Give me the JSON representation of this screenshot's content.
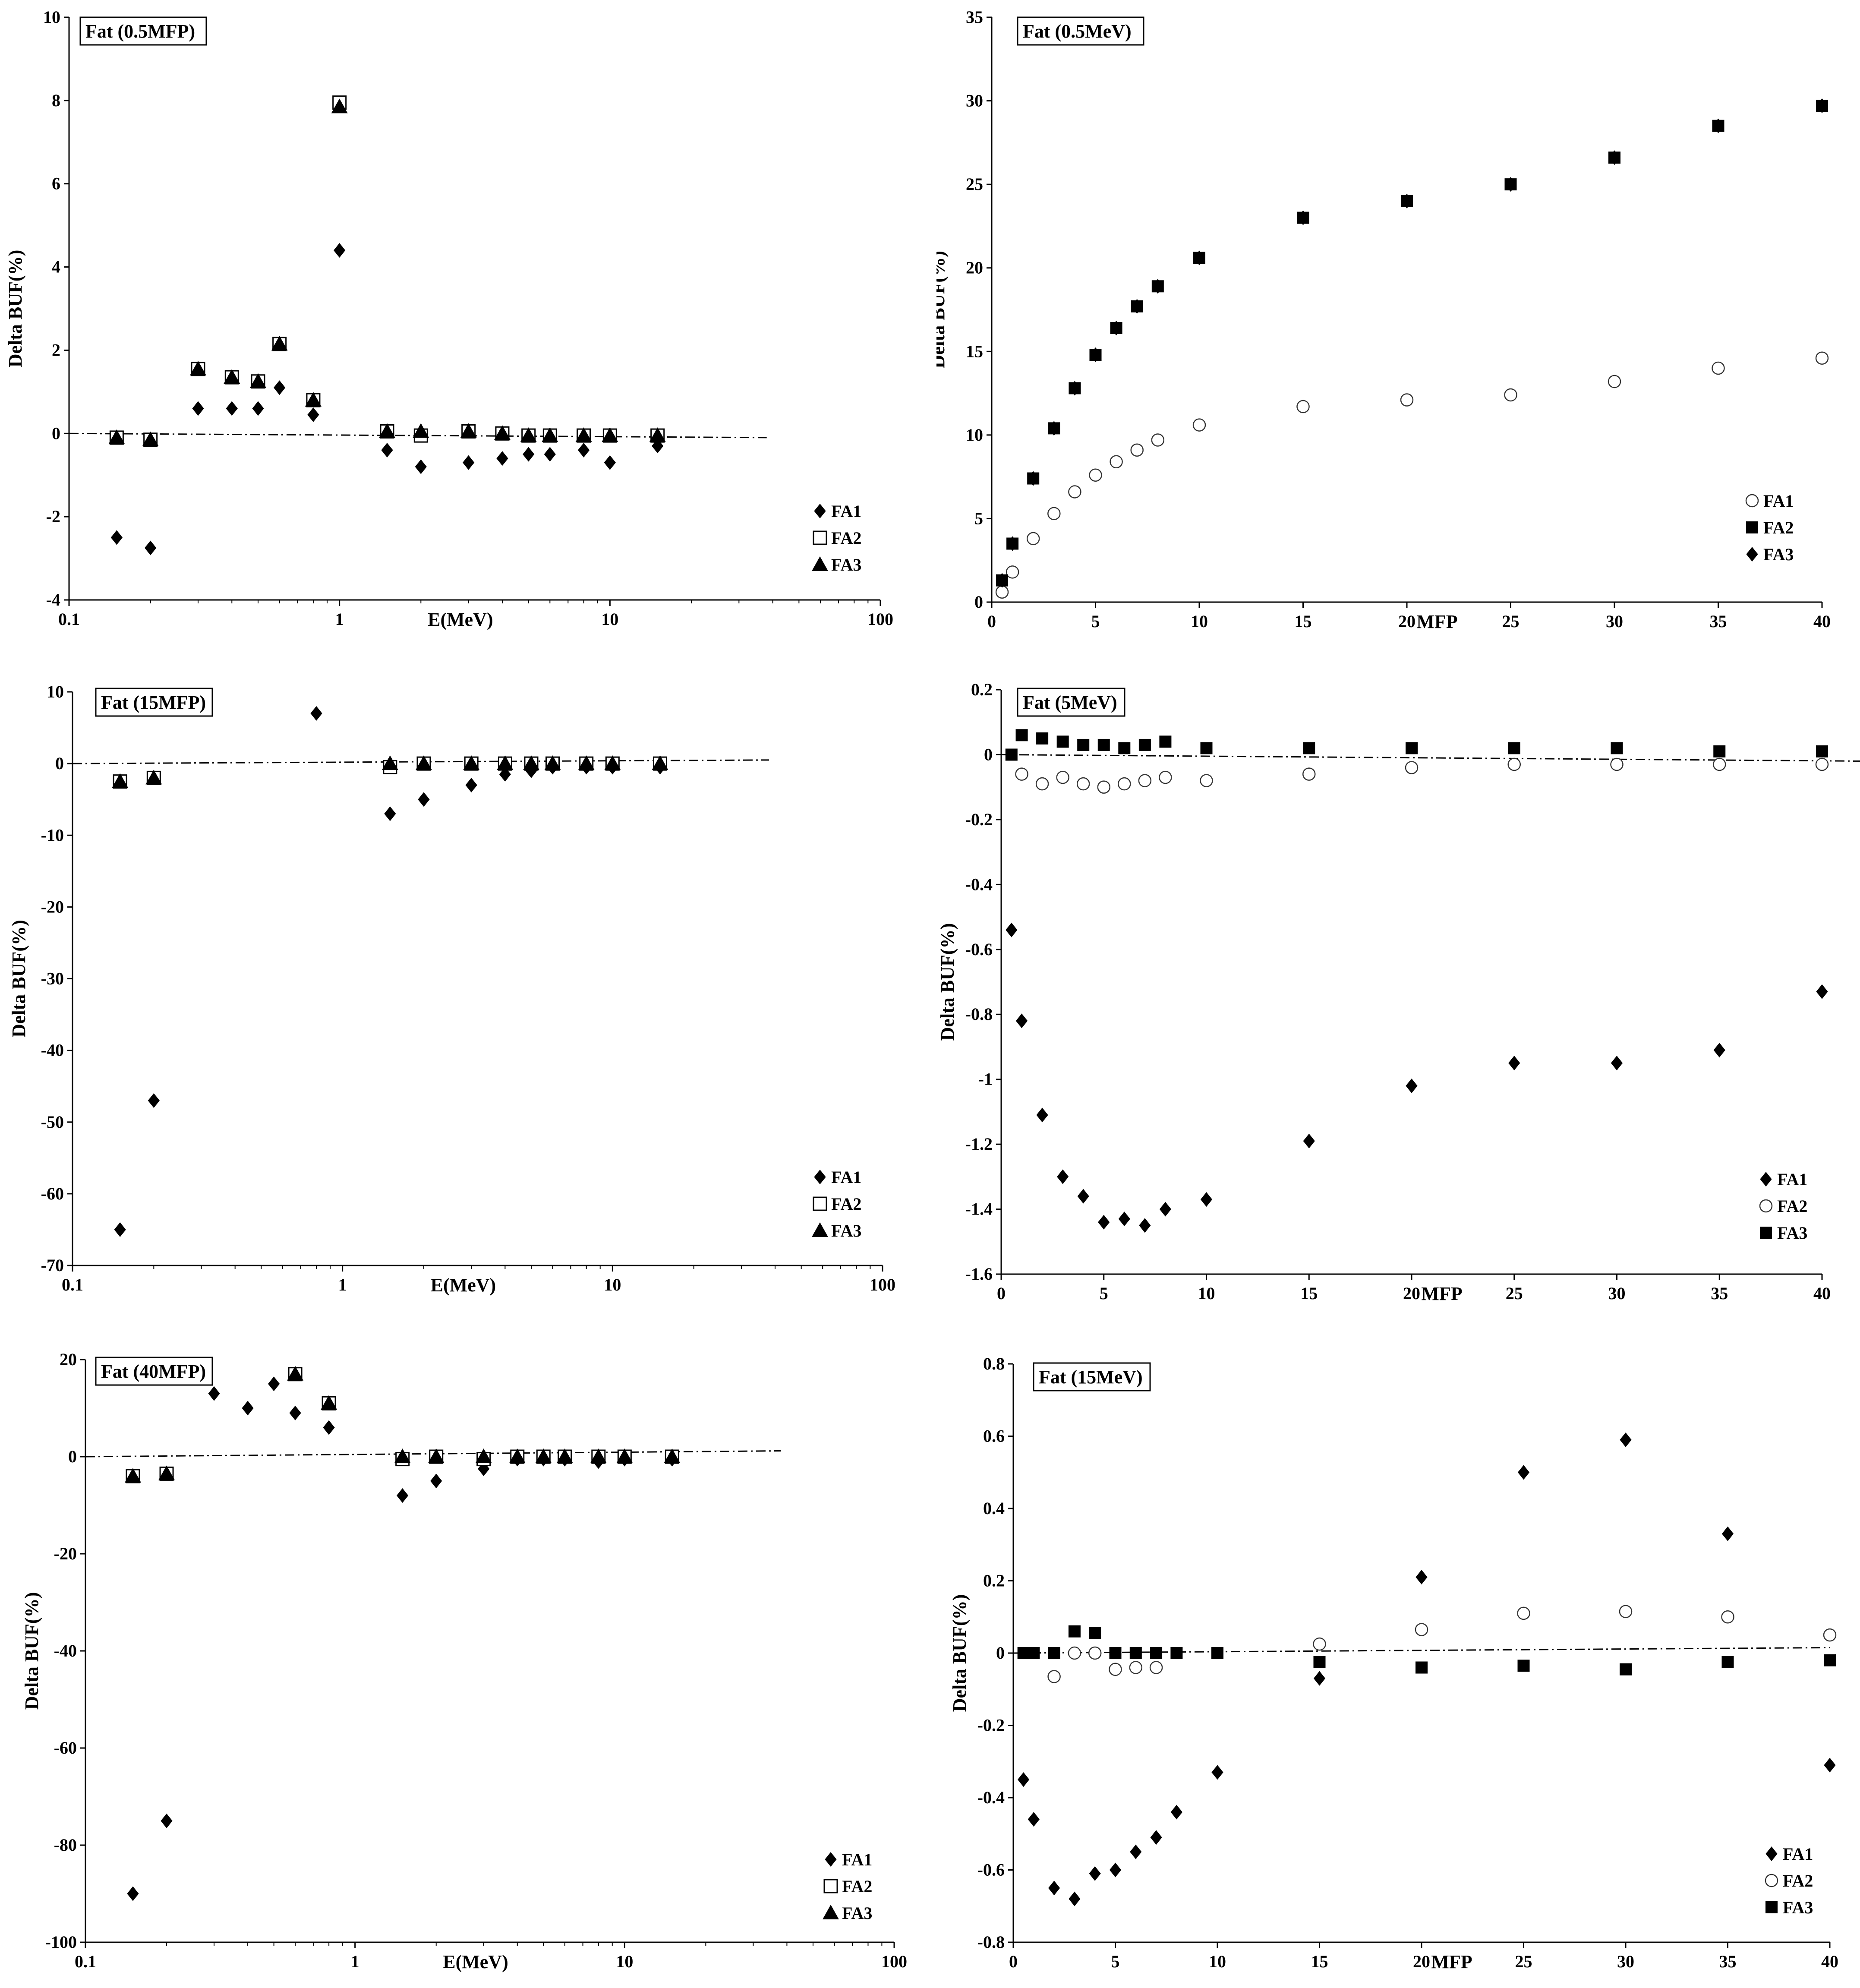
{
  "chart_data": [
    {
      "type": "scatter",
      "title": "Fat (0.5MFP)",
      "xlabel": "E(MeV)",
      "ylabel": "Delta BUF(%)",
      "xscale": "log",
      "xlim": [
        0.1,
        100
      ],
      "ylim": [
        -4,
        10
      ],
      "xticks": [
        0.1,
        1,
        10,
        100
      ],
      "xticklabels": [
        "0.1",
        "1",
        "10",
        "100"
      ],
      "yticks": [
        -4,
        -2,
        0,
        2,
        4,
        6,
        8,
        10
      ],
      "yticklabels": [
        "-4",
        "-2",
        "0",
        "2",
        "4",
        "6",
        "8",
        "10"
      ],
      "reference_line": {
        "x": [
          0.1,
          38
        ],
        "y": [
          0.0,
          -0.1
        ]
      },
      "legend_position": "bottom-right",
      "series": [
        {
          "name": "FA1",
          "marker": "diamond-filled",
          "x": [
            0.15,
            0.2,
            0.3,
            0.4,
            0.5,
            0.6,
            0.8,
            1,
            1.5,
            2,
            3,
            4,
            5,
            6,
            8,
            10,
            15
          ],
          "y": [
            -2.5,
            -2.75,
            0.6,
            0.6,
            0.6,
            1.1,
            0.45,
            4.4,
            -0.4,
            -0.8,
            -0.7,
            -0.6,
            -0.5,
            -0.5,
            -0.4,
            -0.7,
            -0.3
          ]
        },
        {
          "name": "FA2",
          "marker": "square-open",
          "x": [
            0.15,
            0.2,
            0.3,
            0.4,
            0.5,
            0.6,
            0.8,
            1,
            1.5,
            2,
            3,
            4,
            5,
            6,
            8,
            10,
            15
          ],
          "y": [
            -0.1,
            -0.15,
            1.55,
            1.35,
            1.25,
            2.15,
            0.8,
            7.95,
            0.05,
            -0.05,
            0.05,
            0,
            -0.05,
            -0.05,
            -0.05,
            -0.05,
            -0.05
          ]
        },
        {
          "name": "FA3",
          "marker": "triangle-filled",
          "x": [
            0.15,
            0.2,
            0.3,
            0.4,
            0.5,
            0.6,
            0.8,
            1,
            1.5,
            2,
            3,
            4,
            5,
            6,
            8,
            10,
            15
          ],
          "y": [
            -0.1,
            -0.15,
            1.55,
            1.35,
            1.25,
            2.15,
            0.8,
            7.85,
            0.05,
            0.05,
            0.05,
            0,
            -0.05,
            -0.05,
            -0.05,
            -0.05,
            -0.05
          ]
        }
      ]
    },
    {
      "type": "scatter",
      "title": "Fat (0.5MeV)",
      "xlabel": "MFP",
      "ylabel": "Delta BUF(%)",
      "xscale": "linear",
      "xlim": [
        0,
        40
      ],
      "ylim": [
        0,
        35
      ],
      "xticks": [
        0,
        5,
        10,
        15,
        20,
        25,
        30,
        35,
        40
      ],
      "xticklabels": [
        "0",
        "5",
        "10",
        "15",
        "20",
        "25",
        "30",
        "35",
        "40"
      ],
      "yticks": [
        0,
        5,
        10,
        15,
        20,
        25,
        30,
        35
      ],
      "yticklabels": [
        "0",
        "5",
        "10",
        "15",
        "20",
        "25",
        "30",
        "35"
      ],
      "legend_position": "bottom-right",
      "series": [
        {
          "name": "FA1",
          "marker": "circle-open",
          "x": [
            0.5,
            1,
            2,
            3,
            4,
            5,
            6,
            7,
            8,
            10,
            15,
            20,
            25,
            30,
            35,
            40
          ],
          "y": [
            0.6,
            1.8,
            3.8,
            5.3,
            6.6,
            7.6,
            8.4,
            9.1,
            9.7,
            10.6,
            11.7,
            12.1,
            12.4,
            13.2,
            14.0,
            14.6
          ]
        },
        {
          "name": "FA2",
          "marker": "square-filled",
          "x": [
            0.5,
            1,
            2,
            3,
            4,
            5,
            6,
            7,
            8,
            10,
            15,
            20,
            25,
            30,
            35,
            40
          ],
          "y": [
            1.3,
            3.5,
            7.4,
            10.4,
            12.8,
            14.8,
            16.4,
            17.7,
            18.9,
            20.6,
            23.0,
            24.0,
            25.0,
            26.6,
            28.5,
            29.7
          ]
        },
        {
          "name": "FA3",
          "marker": "diamond-filled",
          "x": [
            0.5,
            1,
            2,
            3,
            4,
            5,
            6,
            7,
            8,
            10,
            15,
            20,
            25,
            30,
            35,
            40
          ],
          "y": [
            1.3,
            3.5,
            7.4,
            10.4,
            12.8,
            14.8,
            16.4,
            17.7,
            18.9,
            20.6,
            23.0,
            24.0,
            25.0,
            26.6,
            28.5,
            29.7
          ]
        }
      ]
    },
    {
      "type": "scatter",
      "title": "Fat (15MFP)",
      "xlabel": "E(MeV)",
      "ylabel": "Delta BUF(%)",
      "xscale": "log",
      "xlim": [
        0.1,
        100
      ],
      "ylim": [
        -70,
        10
      ],
      "xticks": [
        0.1,
        1,
        10,
        100
      ],
      "xticklabels": [
        "0.1",
        "1",
        "10",
        "100"
      ],
      "yticks": [
        -70,
        -60,
        -50,
        -40,
        -30,
        -20,
        -10,
        0,
        10
      ],
      "yticklabels": [
        "-70",
        "-60",
        "-50",
        "-40",
        "-30",
        "-20",
        "-10",
        "0",
        "10"
      ],
      "reference_line": {
        "x": [
          0.1,
          38
        ],
        "y": [
          0.0,
          0.5
        ]
      },
      "legend_position": "bottom-right",
      "series": [
        {
          "name": "FA1",
          "marker": "diamond-filled",
          "x": [
            0.15,
            0.2,
            0.8,
            1.5,
            2,
            3,
            4,
            5,
            6,
            8,
            10,
            15
          ],
          "y": [
            -65,
            -47,
            7,
            -7,
            -5,
            -3,
            -1.5,
            -1,
            -0.5,
            -0.5,
            -0.5,
            -0.5
          ]
        },
        {
          "name": "FA2",
          "marker": "square-open",
          "x": [
            0.15,
            0.2,
            1.5,
            2,
            3,
            4,
            5,
            6,
            8,
            10,
            15
          ],
          "y": [
            -2.5,
            -2,
            -0.5,
            0,
            0,
            0,
            0,
            0,
            0,
            0,
            0
          ]
        },
        {
          "name": "FA3",
          "marker": "triangle-filled",
          "x": [
            0.15,
            0.2,
            1.5,
            2,
            3,
            4,
            5,
            6,
            8,
            10,
            15
          ],
          "y": [
            -2.5,
            -2,
            0,
            0,
            0,
            0,
            0,
            0,
            0,
            0,
            0
          ]
        }
      ]
    },
    {
      "type": "scatter",
      "title": "Fat (5MeV)",
      "xlabel": "MFP",
      "ylabel": "Delta BUF(%)",
      "xscale": "linear",
      "xlim": [
        0,
        40
      ],
      "ylim": [
        -1.6,
        0.2
      ],
      "xticks": [
        0,
        5,
        10,
        15,
        20,
        25,
        30,
        35,
        40
      ],
      "xticklabels": [
        "0",
        "5",
        "10",
        "15",
        "20",
        "25",
        "30",
        "35",
        "40"
      ],
      "yticks": [
        -1.6,
        -1.4,
        -1.2,
        -1,
        -0.8,
        -0.6,
        -0.4,
        -0.2,
        0,
        0.2
      ],
      "yticklabels": [
        "-1.6",
        "-1.4",
        "-1.2",
        "-1",
        "-0.8",
        "-0.6",
        "-0.4",
        "-0.2",
        "0",
        "0.2"
      ],
      "reference_line": {
        "x": [
          0,
          42
        ],
        "y": [
          0.0,
          -0.02
        ]
      },
      "legend_position": "bottom-right",
      "series": [
        {
          "name": "FA1",
          "marker": "diamond-filled",
          "x": [
            0.5,
            1,
            2,
            3,
            4,
            5,
            6,
            7,
            8,
            10,
            15,
            20,
            25,
            30,
            35,
            40
          ],
          "y": [
            -0.54,
            -0.82,
            -1.11,
            -1.3,
            -1.36,
            -1.44,
            -1.43,
            -1.45,
            -1.4,
            -1.37,
            -1.19,
            -1.02,
            -0.95,
            -0.95,
            -0.91,
            -0.73
          ]
        },
        {
          "name": "FA2",
          "marker": "circle-open",
          "x": [
            1,
            2,
            3,
            4,
            5,
            6,
            7,
            8,
            10,
            15,
            20,
            25,
            30,
            35,
            40
          ],
          "y": [
            -0.06,
            -0.09,
            -0.07,
            -0.09,
            -0.1,
            -0.09,
            -0.08,
            -0.07,
            -0.08,
            -0.06,
            -0.04,
            -0.03,
            -0.03,
            -0.03,
            -0.03
          ]
        },
        {
          "name": "FA3",
          "marker": "square-filled",
          "x": [
            0.5,
            1,
            2,
            3,
            4,
            5,
            6,
            7,
            8,
            10,
            15,
            20,
            25,
            30,
            35,
            40
          ],
          "y": [
            0.0,
            0.06,
            0.05,
            0.04,
            0.03,
            0.03,
            0.02,
            0.03,
            0.04,
            0.02,
            0.02,
            0.02,
            0.02,
            0.02,
            0.01,
            0.01
          ]
        }
      ]
    },
    {
      "type": "scatter",
      "title": "Fat (40MFP)",
      "xlabel": "E(MeV)",
      "ylabel": "Delta BUF(%)",
      "xscale": "log",
      "xlim": [
        0.1,
        100
      ],
      "ylim": [
        -100,
        20
      ],
      "xticks": [
        0.1,
        1,
        10,
        100
      ],
      "xticklabels": [
        "0.1",
        "1",
        "10",
        "100"
      ],
      "yticks": [
        -100,
        -80,
        -60,
        -40,
        -20,
        0,
        20
      ],
      "yticklabels": [
        "-100",
        "-80",
        "-60",
        "-40",
        "-20",
        "0",
        "20"
      ],
      "reference_line": {
        "x": [
          0.1,
          38
        ],
        "y": [
          0.0,
          1.2
        ]
      },
      "legend_position": "bottom-right",
      "series": [
        {
          "name": "FA1",
          "marker": "diamond-filled",
          "x": [
            0.15,
            0.2,
            0.3,
            0.4,
            0.5,
            0.6,
            0.8,
            1.5,
            2,
            3,
            4,
            5,
            6,
            8,
            10,
            15
          ],
          "y": [
            -90,
            -75,
            13,
            10,
            15,
            9,
            6,
            -8,
            -5,
            -2.5,
            -0.5,
            -0.5,
            -0.5,
            -1,
            -0.5,
            -0.5
          ]
        },
        {
          "name": "FA2",
          "marker": "square-open",
          "x": [
            0.15,
            0.2,
            0.6,
            0.8,
            1.5,
            2,
            3,
            4,
            5,
            6,
            8,
            10,
            15
          ],
          "y": [
            -4,
            -3.5,
            17,
            11,
            -0.5,
            0,
            -0.5,
            0,
            0,
            0,
            0,
            0,
            0
          ]
        },
        {
          "name": "FA3",
          "marker": "triangle-filled",
          "x": [
            0.15,
            0.2,
            0.6,
            0.8,
            1.5,
            2,
            3,
            4,
            5,
            6,
            8,
            10,
            15
          ],
          "y": [
            -4,
            -3.5,
            17,
            11,
            0,
            0,
            0,
            0,
            0,
            0,
            0,
            0,
            0
          ]
        }
      ]
    },
    {
      "type": "scatter",
      "title": "Fat (15MeV)",
      "xlabel": "MFP",
      "ylabel": "Delta BUF(%)",
      "xscale": "linear",
      "xlim": [
        0,
        40
      ],
      "ylim": [
        -0.8,
        0.8
      ],
      "xticks": [
        0,
        5,
        10,
        15,
        20,
        25,
        30,
        35,
        40
      ],
      "xticklabels": [
        "0",
        "5",
        "10",
        "15",
        "20",
        "25",
        "30",
        "35",
        "40"
      ],
      "yticks": [
        -0.8,
        -0.6,
        -0.4,
        -0.2,
        0,
        0.2,
        0.4,
        0.6,
        0.8
      ],
      "yticklabels": [
        "-0.8",
        "-0.6",
        "-0.4",
        "-0.2",
        "0",
        "0.2",
        "0.4",
        "0.6",
        "0.8"
      ],
      "reference_line": {
        "x": [
          0,
          40
        ],
        "y": [
          0.0,
          0.015
        ]
      },
      "legend_position": "bottom-right",
      "series": [
        {
          "name": "FA1",
          "marker": "diamond-filled",
          "x": [
            0.5,
            1,
            2,
            3,
            4,
            5,
            6,
            7,
            8,
            10,
            15,
            20,
            25,
            30,
            35,
            40
          ],
          "y": [
            -0.35,
            -0.46,
            -0.65,
            -0.68,
            -0.61,
            -0.6,
            -0.55,
            -0.51,
            -0.44,
            -0.33,
            -0.07,
            0.21,
            0.5,
            0.59,
            0.33,
            -0.31
          ]
        },
        {
          "name": "FA2",
          "marker": "circle-open",
          "x": [
            2,
            3,
            4,
            5,
            6,
            7,
            15,
            20,
            25,
            30,
            35,
            40
          ],
          "y": [
            -0.065,
            0.0,
            0.0,
            -0.045,
            -0.04,
            -0.04,
            0.025,
            0.065,
            0.11,
            0.115,
            0.1,
            0.05
          ]
        },
        {
          "name": "FA3",
          "marker": "square-filled",
          "x": [
            0.5,
            1,
            2,
            3,
            4,
            5,
            6,
            7,
            8,
            10,
            15,
            20,
            25,
            30,
            35,
            40
          ],
          "y": [
            0.0,
            0.0,
            0.0,
            0.06,
            0.055,
            0.0,
            0.0,
            0.0,
            0.0,
            0.0,
            -0.025,
            -0.04,
            -0.035,
            -0.045,
            -0.025,
            -0.02
          ]
        }
      ]
    }
  ]
}
